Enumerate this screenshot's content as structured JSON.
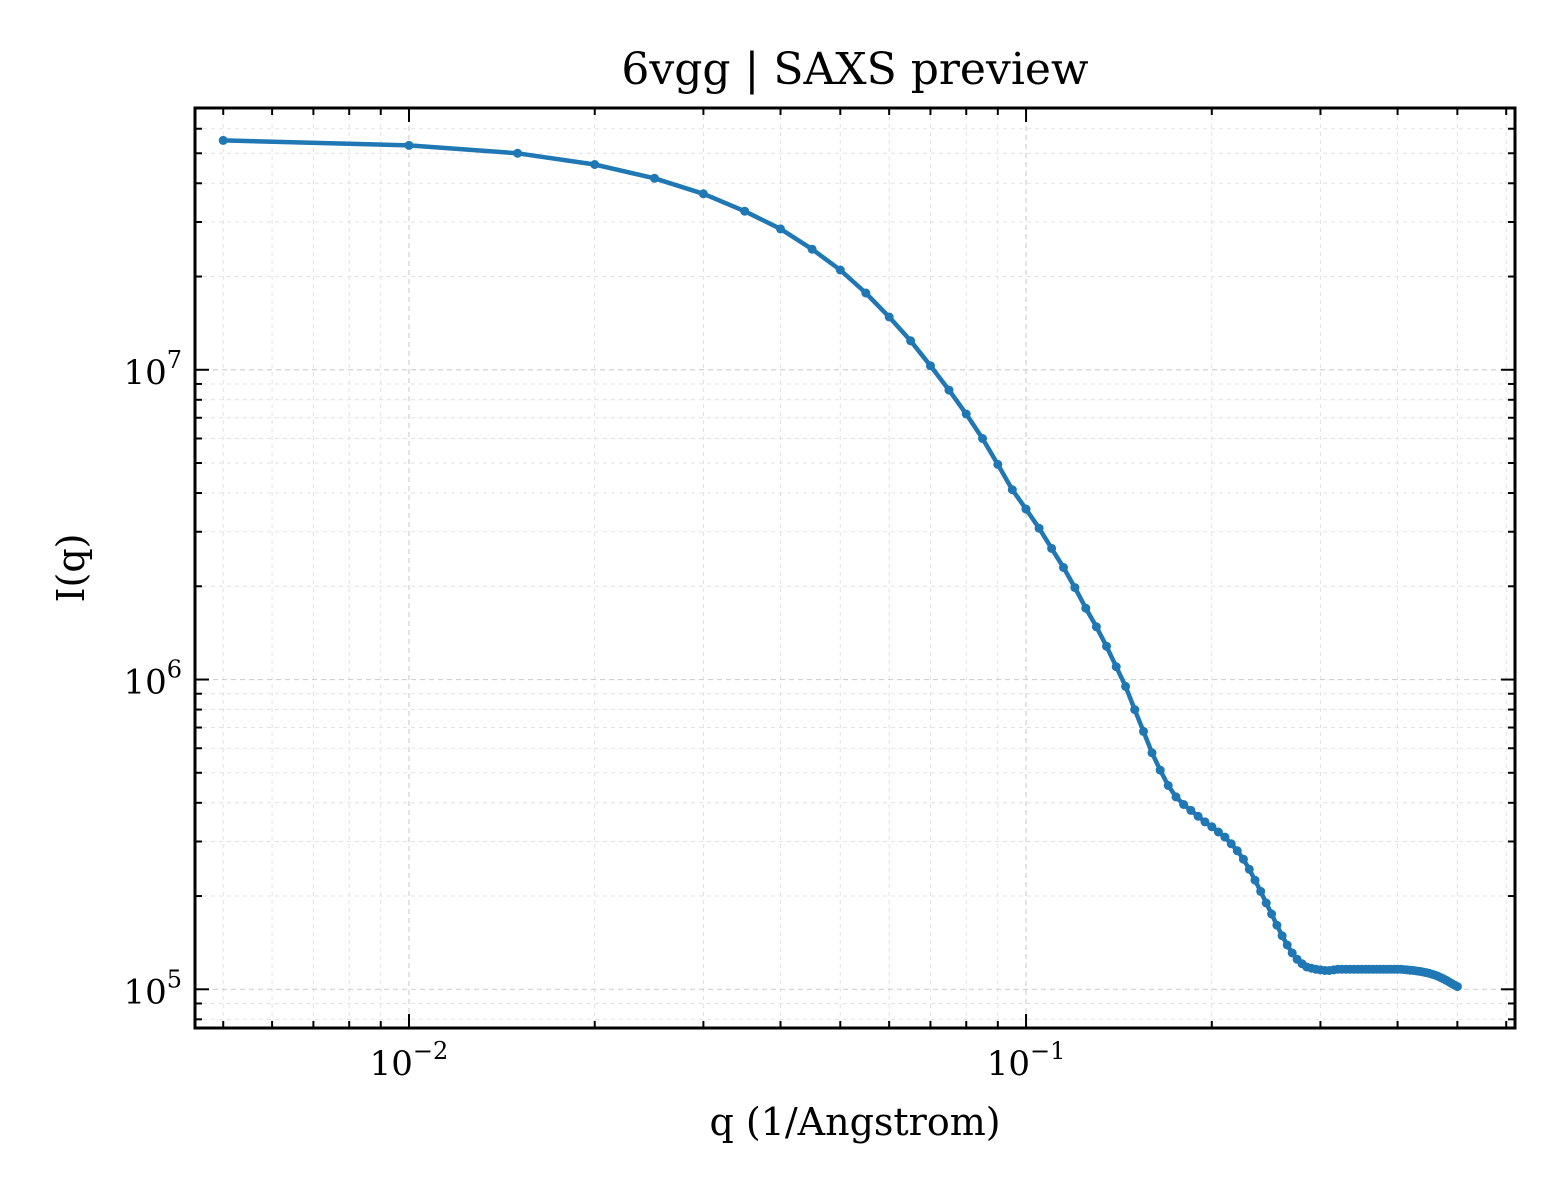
{
  "chart_data": {
    "type": "line",
    "title": "6vgg | SAXS preview",
    "xlabel": "q (1/Angstrom)",
    "ylabel": "I(q)",
    "xscale": "log",
    "yscale": "log",
    "xlim": [
      0.0045,
      0.62
    ],
    "ylim": [
      75000,
      70000000
    ],
    "grid": true,
    "legend": "none",
    "x_ticks": [
      {
        "value": 0.01,
        "base": "10",
        "exp": "−2"
      },
      {
        "value": 0.1,
        "base": "10",
        "exp": "−1"
      }
    ],
    "y_ticks": [
      {
        "value": 100000,
        "base": "10",
        "exp": "5"
      },
      {
        "value": 1000000,
        "base": "10",
        "exp": "6"
      },
      {
        "value": 10000000,
        "base": "10",
        "exp": "7"
      }
    ],
    "color": "#1f77b4",
    "series": [
      {
        "x": [
          0.005,
          0.01,
          0.015,
          0.02,
          0.025,
          0.03,
          0.035,
          0.04,
          0.045,
          0.05,
          0.055,
          0.06,
          0.065,
          0.07,
          0.075,
          0.08,
          0.085,
          0.09,
          0.095,
          0.1,
          0.105,
          0.11,
          0.115,
          0.12,
          0.125,
          0.13,
          0.135,
          0.14,
          0.145,
          0.15,
          0.155,
          0.16,
          0.165,
          0.17,
          0.175,
          0.18,
          0.185,
          0.19,
          0.195,
          0.2,
          0.205,
          0.21,
          0.215,
          0.22,
          0.225,
          0.23,
          0.235,
          0.24,
          0.245,
          0.25,
          0.255,
          0.26,
          0.265,
          0.27,
          0.275,
          0.28,
          0.285,
          0.29,
          0.295,
          0.3,
          0.305,
          0.31,
          0.315,
          0.32,
          0.325,
          0.33,
          0.335,
          0.34,
          0.345,
          0.35,
          0.355,
          0.36,
          0.365,
          0.37,
          0.375,
          0.38,
          0.385,
          0.39,
          0.395,
          0.4,
          0.405,
          0.41,
          0.415,
          0.42,
          0.425,
          0.43,
          0.435,
          0.44,
          0.445,
          0.45,
          0.455,
          0.46,
          0.465,
          0.47,
          0.475,
          0.48,
          0.485,
          0.49,
          0.495,
          0.5
        ],
        "y": [
          55000000,
          53000000,
          50000000,
          46000000,
          41500000,
          37000000,
          32500000,
          28500000,
          24500000,
          21000000,
          17700000,
          14800000,
          12400000,
          10300000,
          8600000,
          7200000,
          6000000,
          4950000,
          4100000,
          3550000,
          3080000,
          2650000,
          2300000,
          1980000,
          1700000,
          1480000,
          1280000,
          1100000,
          950000,
          800000,
          680000,
          580000,
          510000,
          455000,
          418000,
          395000,
          378000,
          362000,
          347000,
          335000,
          322000,
          310000,
          295000,
          280000,
          263000,
          244000,
          225000,
          207000,
          190000,
          175000,
          161000,
          149000,
          139000,
          131000,
          125000,
          121000,
          118000,
          117000,
          116000,
          115500,
          115000,
          115000,
          115500,
          116000,
          116000,
          116000,
          116000,
          116000,
          116000,
          116000,
          116000,
          116000,
          116000,
          116000,
          116000,
          116000,
          116000,
          116000,
          116000,
          116000,
          116000,
          115800,
          115500,
          115200,
          115000,
          114600,
          114200,
          113700,
          113200,
          112600,
          111900,
          111100,
          110200,
          109100,
          108000,
          106800,
          105600,
          104300,
          103100,
          102000
        ]
      }
    ]
  }
}
